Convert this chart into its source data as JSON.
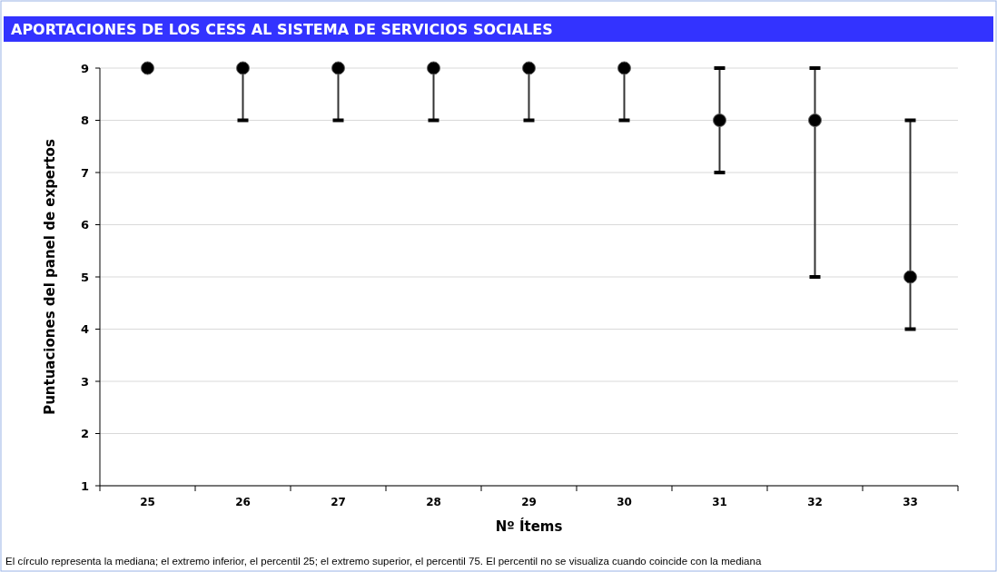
{
  "chart_data": {
    "type": "scatter",
    "title": "APORTACIONES DE LOS CESS AL SISTEMA DE SERVICIOS SOCIALES",
    "xlabel": "Nº Ítems",
    "ylabel": "Puntuaciones del panel de expertos",
    "categories": [
      "25",
      "26",
      "27",
      "28",
      "29",
      "30",
      "31",
      "32",
      "33"
    ],
    "series": [
      {
        "color": "#000000",
        "values": [
          9,
          9,
          9,
          9,
          9,
          9,
          8,
          8,
          5
        ],
        "errors": [
          null,
          [
            8,
            9
          ],
          [
            8,
            9
          ],
          [
            8,
            9
          ],
          [
            8,
            9
          ],
          [
            8,
            9
          ],
          [
            7,
            9
          ],
          [
            5,
            9
          ],
          [
            4,
            8
          ]
        ]
      }
    ],
    "ylim": [
      1,
      9
    ],
    "yticks": [
      1,
      2,
      3,
      4,
      5,
      6,
      7,
      8,
      9
    ],
    "grid": "y",
    "marker": "circle",
    "annotations": [
      "El círculo representa la mediana; el extremo inferior, el percentil 25; el extremo superior, el percentil 75. El percentil no se visualiza cuando coincide con la mediana"
    ]
  }
}
